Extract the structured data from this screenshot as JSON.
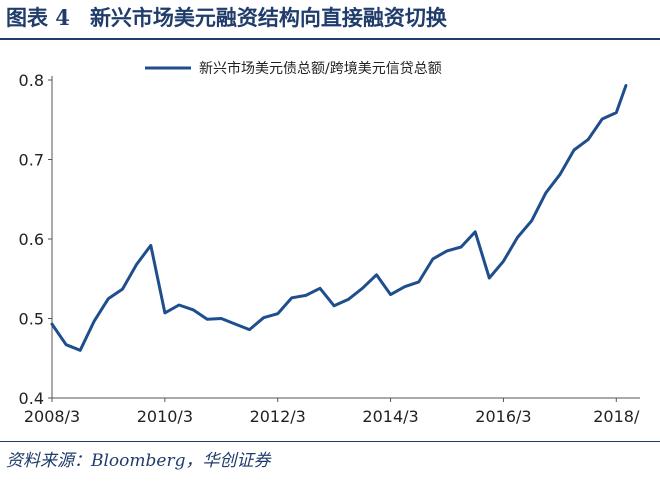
{
  "title": {
    "figure_label": "图表 4",
    "text": "新兴市场美元融资结构向直接融资切换"
  },
  "source": "资料来源：Bloomberg，华创证券",
  "colors": {
    "accent": "#1f4e8c",
    "title": "#1f3c6b"
  },
  "chart_data": {
    "type": "line",
    "title": "",
    "xlabel": "",
    "ylabel": "",
    "ylim": [
      0.4,
      0.8
    ],
    "yticks": [
      "0.4",
      "0.5",
      "0.6",
      "0.7",
      "0.8"
    ],
    "xtick_labels": [
      "2008/3",
      "2010/3",
      "2012/3",
      "2014/3",
      "2016/3",
      "2018/"
    ],
    "xticks": [
      2008.25,
      2010.25,
      2012.25,
      2014.25,
      2016.25,
      2018.25
    ],
    "xlim": [
      2008.25,
      2018.42
    ],
    "grid": false,
    "legend_position": "top",
    "series": [
      {
        "name": "新兴市场美元债总额/跨境美元信贷总额",
        "color": "#1f4e8c",
        "x": [
          2008.25,
          2008.5,
          2008.75,
          2009.0,
          2009.25,
          2009.5,
          2009.75,
          2010.0,
          2010.25,
          2010.5,
          2010.75,
          2011.0,
          2011.25,
          2011.5,
          2011.75,
          2012.0,
          2012.25,
          2012.5,
          2012.75,
          2013.0,
          2013.25,
          2013.5,
          2013.75,
          2014.0,
          2014.25,
          2014.5,
          2014.75,
          2015.0,
          2015.25,
          2015.5,
          2015.75,
          2016.0,
          2016.25,
          2016.5,
          2016.75,
          2017.0,
          2017.25,
          2017.5,
          2017.75,
          2018.0,
          2018.25
        ],
        "values": [
          0.493,
          0.467,
          0.46,
          0.497,
          0.525,
          0.537,
          0.568,
          0.592,
          0.507,
          0.517,
          0.511,
          0.499,
          0.5,
          0.493,
          0.486,
          0.501,
          0.506,
          0.526,
          0.529,
          0.538,
          0.516,
          0.524,
          0.538,
          0.555,
          0.53,
          0.54,
          0.546,
          0.575,
          0.585,
          0.59,
          0.609,
          0.551,
          0.572,
          0.602,
          0.623,
          0.658,
          0.681,
          0.712,
          0.725,
          0.751,
          0.759
        ]
      }
    ],
    "last_point": {
      "x": 2018.42,
      "value": 0.793
    }
  }
}
